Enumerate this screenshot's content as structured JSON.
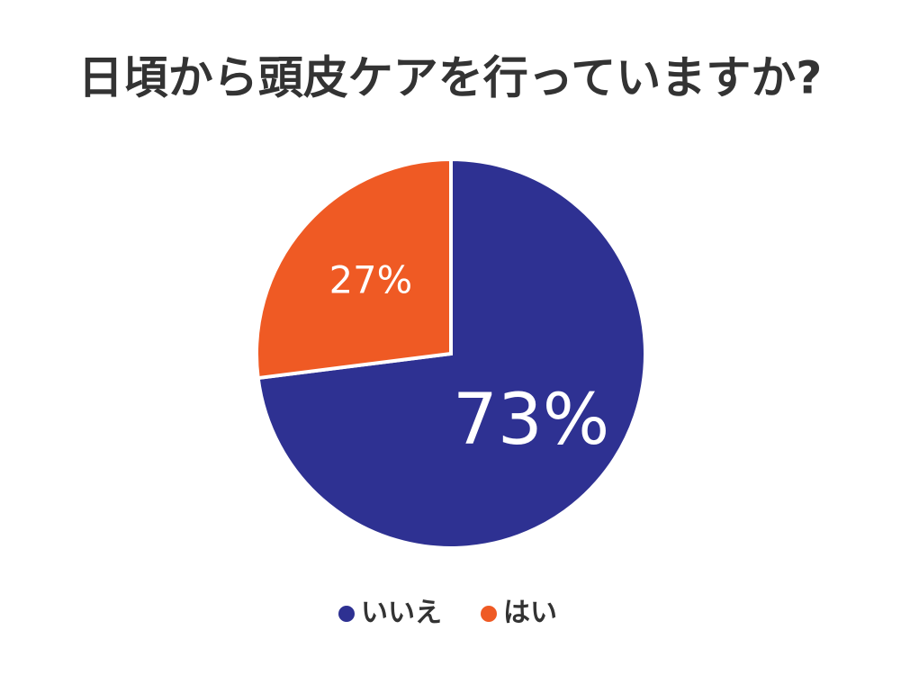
{
  "chart_data": {
    "type": "pie",
    "title": "日頃から頭皮ケアを行っていますか?",
    "categories": [
      "いいえ",
      "はい"
    ],
    "values": [
      73,
      27
    ],
    "value_labels": [
      "73%",
      "27%"
    ],
    "colors": [
      "#2e3192",
      "#ef5a24"
    ],
    "legend": "bottom"
  }
}
